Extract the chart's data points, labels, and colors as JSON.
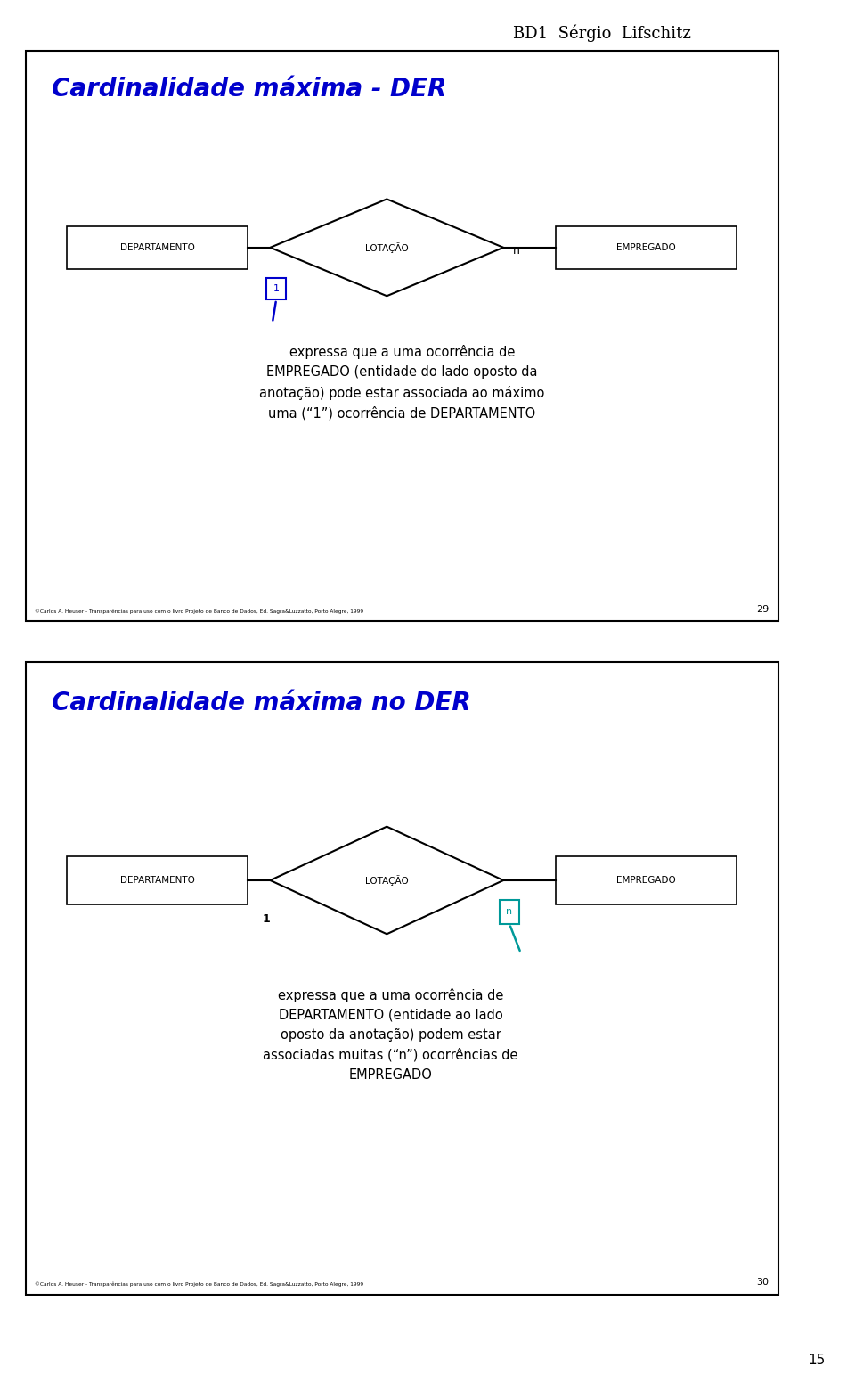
{
  "bg_color": "#ffffff",
  "header_text": "BD1  Sérgio  Lifschitz",
  "header_fontsize": 13,
  "slide1": {
    "title": "Cardinalidade máxima - DER",
    "title_color": "#0000cc",
    "title_fontsize": 20,
    "dept_label": "DEPARTAMENTO",
    "lotacao_label": "LOTAÇÃO",
    "empregado_label": "EMPREGADO",
    "card1_label": "1",
    "card1_color": "#0000cc",
    "cardn_label": "n",
    "cardn_color": "#000000",
    "description": "expressa que a uma ocorrência de\nEMPREGADO (entidade do lado oposto da\nanotação) pode estar associada ao máximo\numa (“1”) ocorrência de DEPARTAMENTO",
    "desc_fontsize": 10.5,
    "copyright": "©Carlos A. Heuser - Transparências para uso com o livro Projeto de Banco de Dados, Ed. Sagra&Luzzatto, Porto Alegre, 1999",
    "page_num": "29"
  },
  "slide2": {
    "title": "Cardinalidade máxima no DER",
    "title_color": "#0000cc",
    "title_fontsize": 20,
    "dept_label": "DEPARTAMENTO",
    "lotacao_label": "LOTAÇÃO",
    "empregado_label": "EMPREGADO",
    "card1_label": "1",
    "card1_color": "#000000",
    "cardn_label": "n",
    "cardn_color": "#009999",
    "description": "expressa que a uma ocorrência de\nDEPARTAMENTO (entidade ao lado\noposto da anotação) podem estar\nassociadas muitas (“n”) ocorrências de\nEMPREGADO",
    "desc_fontsize": 10.5,
    "copyright": "©Carlos A. Heuser - Transparências para uso com o livro Projeto de Banco de Dados, Ed. Sagra&Luzzatto, Porto Alegre, 1999",
    "page_num": "30"
  },
  "page_num_bottom": "15"
}
